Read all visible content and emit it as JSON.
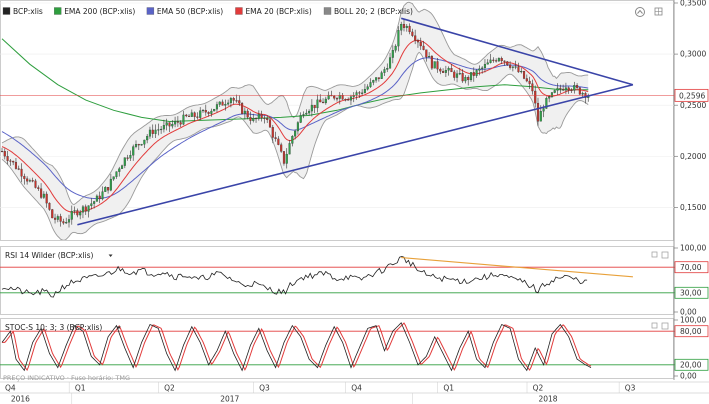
{
  "chart_data": [
    {
      "type": "candlestick",
      "title": "",
      "legend": [
        {
          "label": "BCP:xlis",
          "color": "#222222"
        },
        {
          "label": "EMA 200 (BCP:xlis)",
          "color": "#2e9e3e"
        },
        {
          "label": "EMA 50 (BCP:xlis)",
          "color": "#5a63c7"
        },
        {
          "label": "EMA 20 (BCP:xlis)",
          "color": "#e23b3b"
        },
        {
          "label": "BOLL 20; 2 (BCP:xlis)",
          "color": "#888888"
        }
      ],
      "ylim": [
        0.12,
        0.35
      ],
      "yticks": [
        "0,1500",
        "0,2000",
        "0,2500",
        "0,3000",
        "0,3500"
      ],
      "ytick_values": [
        0.15,
        0.2,
        0.25,
        0.3,
        0.35
      ],
      "last_price": 0.2596,
      "last_price_label": "0,2596",
      "price_path": [
        [
          0,
          0.205
        ],
        [
          5,
          0.19
        ],
        [
          10,
          0.175
        ],
        [
          15,
          0.16
        ],
        [
          18,
          0.14
        ],
        [
          22,
          0.135
        ],
        [
          26,
          0.145
        ],
        [
          30,
          0.15
        ],
        [
          34,
          0.158
        ],
        [
          38,
          0.17
        ],
        [
          42,
          0.19
        ],
        [
          46,
          0.205
        ],
        [
          50,
          0.215
        ],
        [
          54,
          0.225
        ],
        [
          58,
          0.228
        ],
        [
          62,
          0.232
        ],
        [
          66,
          0.238
        ],
        [
          70,
          0.24
        ],
        [
          74,
          0.245
        ],
        [
          78,
          0.25
        ],
        [
          82,
          0.258
        ],
        [
          86,
          0.245
        ],
        [
          90,
          0.235
        ],
        [
          94,
          0.24
        ],
        [
          98,
          0.215
        ],
        [
          101,
          0.195
        ],
        [
          104,
          0.22
        ],
        [
          108,
          0.245
        ],
        [
          112,
          0.25
        ],
        [
          116,
          0.255
        ],
        [
          120,
          0.26
        ],
        [
          124,
          0.258
        ],
        [
          128,
          0.262
        ],
        [
          132,
          0.27
        ],
        [
          136,
          0.28
        ],
        [
          140,
          0.3
        ],
        [
          143,
          0.33
        ],
        [
          146,
          0.325
        ],
        [
          150,
          0.31
        ],
        [
          154,
          0.29
        ],
        [
          158,
          0.285
        ],
        [
          162,
          0.28
        ],
        [
          166,
          0.275
        ],
        [
          170,
          0.282
        ],
        [
          174,
          0.29
        ],
        [
          178,
          0.298
        ],
        [
          182,
          0.29
        ],
        [
          186,
          0.28
        ],
        [
          190,
          0.265
        ],
        [
          192,
          0.235
        ],
        [
          194,
          0.25
        ],
        [
          198,
          0.262
        ],
        [
          202,
          0.27
        ],
        [
          206,
          0.265
        ],
        [
          210,
          0.26
        ]
      ],
      "ema200_path": [
        [
          0,
          0.315
        ],
        [
          10,
          0.29
        ],
        [
          20,
          0.27
        ],
        [
          30,
          0.255
        ],
        [
          40,
          0.245
        ],
        [
          50,
          0.238
        ],
        [
          60,
          0.234
        ],
        [
          70,
          0.235
        ],
        [
          80,
          0.236
        ],
        [
          90,
          0.237
        ],
        [
          100,
          0.238
        ],
        [
          110,
          0.24
        ],
        [
          120,
          0.245
        ],
        [
          130,
          0.252
        ],
        [
          140,
          0.258
        ],
        [
          150,
          0.262
        ],
        [
          160,
          0.265
        ],
        [
          170,
          0.268
        ],
        [
          180,
          0.27
        ],
        [
          190,
          0.268
        ],
        [
          200,
          0.265
        ],
        [
          210,
          0.265
        ]
      ],
      "trendlines": [
        {
          "from": [
            27,
            0.133
          ],
          "to": [
            226,
            0.27
          ]
        },
        {
          "from": [
            143,
            0.335
          ],
          "to": [
            226,
            0.27
          ]
        }
      ],
      "x_range": [
        0,
        240
      ]
    },
    {
      "type": "line",
      "title": "",
      "legend": [
        {
          "label": "RSI 14 Wilder (BCP:xlis)",
          "color": "#222222"
        }
      ],
      "ylim": [
        0,
        100
      ],
      "yticks": [
        "0,00",
        "30,00",
        "70,00",
        "100,00"
      ],
      "ytick_values": [
        0,
        30,
        70,
        100
      ],
      "levels": [
        {
          "value": 70,
          "color": "#e23b3b",
          "label": "70,00"
        },
        {
          "value": 30,
          "color": "#2e9e3e",
          "label": "30,00"
        }
      ],
      "path": [
        [
          0,
          40
        ],
        [
          5,
          35
        ],
        [
          10,
          28
        ],
        [
          15,
          32
        ],
        [
          18,
          25
        ],
        [
          22,
          40
        ],
        [
          26,
          48
        ],
        [
          30,
          52
        ],
        [
          34,
          55
        ],
        [
          38,
          60
        ],
        [
          42,
          68
        ],
        [
          46,
          62
        ],
        [
          50,
          65
        ],
        [
          54,
          60
        ],
        [
          58,
          63
        ],
        [
          62,
          55
        ],
        [
          66,
          58
        ],
        [
          70,
          50
        ],
        [
          74,
          56
        ],
        [
          78,
          60
        ],
        [
          82,
          52
        ],
        [
          86,
          42
        ],
        [
          90,
          45
        ],
        [
          94,
          38
        ],
        [
          98,
          33
        ],
        [
          101,
          30
        ],
        [
          104,
          45
        ],
        [
          108,
          55
        ],
        [
          112,
          58
        ],
        [
          116,
          60
        ],
        [
          120,
          52
        ],
        [
          124,
          55
        ],
        [
          128,
          50
        ],
        [
          132,
          58
        ],
        [
          136,
          65
        ],
        [
          140,
          75
        ],
        [
          143,
          85
        ],
        [
          146,
          78
        ],
        [
          150,
          62
        ],
        [
          154,
          55
        ],
        [
          158,
          52
        ],
        [
          162,
          50
        ],
        [
          166,
          48
        ],
        [
          170,
          52
        ],
        [
          174,
          55
        ],
        [
          178,
          60
        ],
        [
          182,
          52
        ],
        [
          186,
          48
        ],
        [
          190,
          40
        ],
        [
          192,
          32
        ],
        [
          194,
          42
        ],
        [
          198,
          52
        ],
        [
          202,
          55
        ],
        [
          206,
          50
        ],
        [
          210,
          46
        ]
      ],
      "trendline": {
        "from": [
          143,
          85
        ],
        "to": [
          226,
          55
        ]
      },
      "x_range": [
        0,
        240
      ]
    },
    {
      "type": "line",
      "title": "",
      "legend": [
        {
          "label": "STOC-S 10; 3; 3 (BCP:xlis)",
          "color": "#222222"
        }
      ],
      "ylim": [
        0,
        100
      ],
      "yticks": [
        "0,00",
        "20,00",
        "80,00",
        "100,00"
      ],
      "ytick_values": [
        0,
        20,
        80,
        100
      ],
      "levels": [
        {
          "value": 80,
          "color": "#e23b3b",
          "label": "80,00"
        },
        {
          "value": 20,
          "color": "#2e9e3e",
          "label": "20,00"
        }
      ],
      "k_series_color": "#222222",
      "d_series_color": "#e23b3b",
      "cycles": [
        [
          0,
          60
        ],
        [
          3,
          80
        ],
        [
          5,
          30
        ],
        [
          8,
          10
        ],
        [
          11,
          60
        ],
        [
          14,
          85
        ],
        [
          17,
          40
        ],
        [
          20,
          15
        ],
        [
          23,
          55
        ],
        [
          26,
          90
        ],
        [
          29,
          80
        ],
        [
          32,
          35
        ],
        [
          35,
          20
        ],
        [
          38,
          70
        ],
        [
          41,
          90
        ],
        [
          44,
          50
        ],
        [
          47,
          15
        ],
        [
          50,
          60
        ],
        [
          53,
          92
        ],
        [
          56,
          85
        ],
        [
          59,
          40
        ],
        [
          62,
          10
        ],
        [
          65,
          55
        ],
        [
          68,
          88
        ],
        [
          71,
          60
        ],
        [
          74,
          20
        ],
        [
          77,
          45
        ],
        [
          80,
          80
        ],
        [
          83,
          40
        ],
        [
          86,
          10
        ],
        [
          89,
          55
        ],
        [
          92,
          85
        ],
        [
          95,
          45
        ],
        [
          98,
          15
        ],
        [
          101,
          60
        ],
        [
          104,
          90
        ],
        [
          107,
          70
        ],
        [
          110,
          30
        ],
        [
          113,
          15
        ],
        [
          116,
          55
        ],
        [
          119,
          88
        ],
        [
          122,
          60
        ],
        [
          125,
          15
        ],
        [
          128,
          50
        ],
        [
          131,
          85
        ],
        [
          134,
          90
        ],
        [
          137,
          45
        ],
        [
          140,
          80
        ],
        [
          143,
          95
        ],
        [
          146,
          60
        ],
        [
          149,
          20
        ],
        [
          152,
          35
        ],
        [
          155,
          70
        ],
        [
          158,
          40
        ],
        [
          161,
          10
        ],
        [
          164,
          50
        ],
        [
          167,
          80
        ],
        [
          170,
          30
        ],
        [
          173,
          15
        ],
        [
          176,
          60
        ],
        [
          179,
          92
        ],
        [
          182,
          85
        ],
        [
          185,
          30
        ],
        [
          188,
          10
        ],
        [
          191,
          50
        ],
        [
          194,
          20
        ],
        [
          197,
          75
        ],
        [
          200,
          92
        ],
        [
          203,
          70
        ],
        [
          206,
          30
        ],
        [
          209,
          20
        ],
        [
          211,
          15
        ]
      ],
      "x_range": [
        0,
        240
      ]
    }
  ],
  "x_axis": {
    "quarters": [
      {
        "label": "Q4",
        "x": 3
      },
      {
        "label": "Q1",
        "x": 28
      },
      {
        "label": "Q2",
        "x": 60
      },
      {
        "label": "Q3",
        "x": 94
      },
      {
        "label": "Q4",
        "x": 127
      },
      {
        "label": "Q1",
        "x": 160
      },
      {
        "label": "Q2",
        "x": 192
      },
      {
        "label": "Q3",
        "x": 225
      }
    ],
    "years": [
      {
        "label": "2016",
        "x": 3
      },
      {
        "label": "2017",
        "x": 78
      },
      {
        "label": "2018",
        "x": 192
      }
    ],
    "year_dividers": [
      25,
      147
    ]
  },
  "footer": {
    "watermark": "PREÇO INDICATIVO · Fuso horário: TMG"
  },
  "icons": [
    "zoom-icon",
    "grid-icon",
    "scroll-top-icon"
  ]
}
